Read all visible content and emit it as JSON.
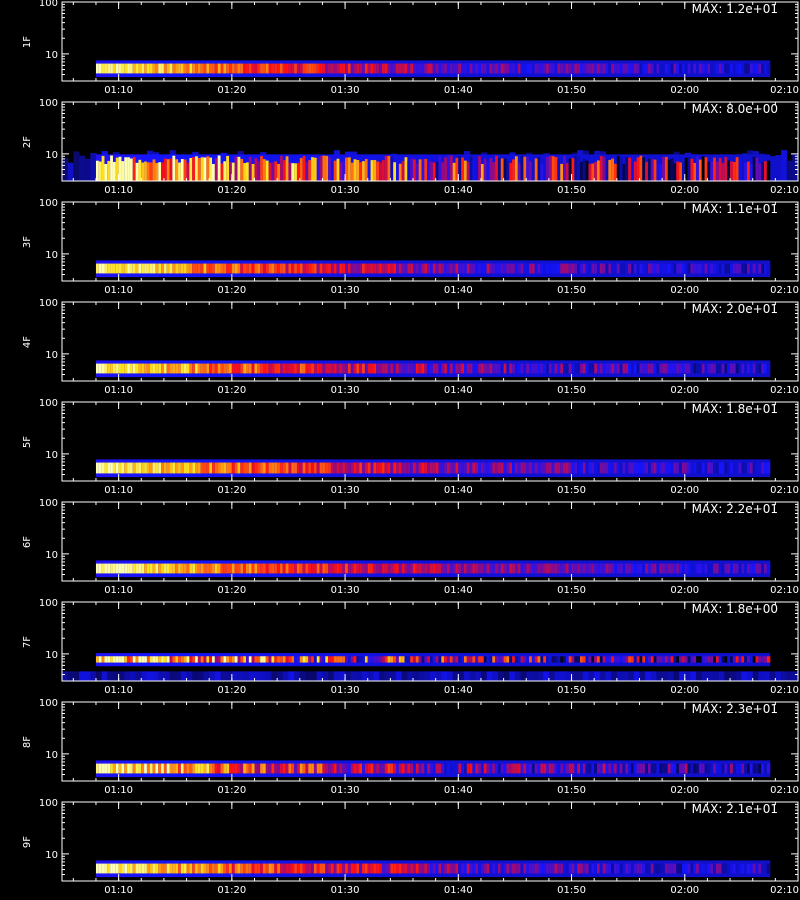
{
  "colors": {
    "background": "#000000",
    "axis": "#ffffff",
    "colormap": [
      "#000000",
      "#0a0a80",
      "#1414ff",
      "#8a0a8a",
      "#ff1010",
      "#ff7a10",
      "#ffe21a",
      "#ffffb0"
    ]
  },
  "chart_data": {
    "type": "heatmap",
    "layout": "9 vertically stacked spectrogram panels sharing a time axis",
    "x_axis": {
      "tick_labels": [
        "01:10",
        "01:20",
        "01:30",
        "01:40",
        "01:50",
        "02:00",
        "02:10"
      ],
      "tick_values_min": [
        70,
        80,
        90,
        100,
        110,
        120,
        130
      ],
      "minor_tick_step_min": 2,
      "range_min": [
        65,
        130
      ],
      "data_range_min": [
        68,
        127.5
      ],
      "title": ""
    },
    "y_axis": {
      "scale": "log",
      "tick_labels": [
        "10",
        "100"
      ],
      "tick_values": [
        10,
        100
      ],
      "range": [
        3,
        100
      ]
    },
    "panels": [
      {
        "label": "1F",
        "max_text": "MAX: 1.2e+01",
        "band": [
          4.2,
          6.5
        ],
        "decay_min": 22,
        "noise": 0.12,
        "spread": 0
      },
      {
        "label": "2F",
        "max_text": "MAX: 8.0e+00",
        "band": [
          3.0,
          8.5
        ],
        "decay_min": 28,
        "noise": 0.35,
        "spread": 1
      },
      {
        "label": "3F",
        "max_text": "MAX: 1.1e+01",
        "band": [
          4.2,
          6.5
        ],
        "decay_min": 22,
        "noise": 0.12,
        "spread": 0
      },
      {
        "label": "4F",
        "max_text": "MAX: 2.0e+01",
        "band": [
          4.2,
          6.5
        ],
        "decay_min": 22,
        "noise": 0.15,
        "spread": 0
      },
      {
        "label": "5F",
        "max_text": "MAX: 1.8e+01",
        "band": [
          4.2,
          6.8
        ],
        "decay_min": 24,
        "noise": 0.12,
        "spread": 0
      },
      {
        "label": "6F",
        "max_text": "MAX: 2.2e+01",
        "band": [
          4.2,
          6.5
        ],
        "decay_min": 26,
        "noise": 0.1,
        "spread": 0
      },
      {
        "label": "7F",
        "max_text": "MAX: 1.8e+00",
        "band": [
          6.8,
          9.0
        ],
        "decay_min": 24,
        "noise": 0.35,
        "spread": 2
      },
      {
        "label": "8F",
        "max_text": "MAX: 2.3e+01",
        "band": [
          4.2,
          6.5
        ],
        "decay_min": 22,
        "noise": 0.2,
        "spread": 0
      },
      {
        "label": "9F",
        "max_text": "MAX: 2.1e+01",
        "band": [
          4.2,
          6.5
        ],
        "decay_min": 22,
        "noise": 0.15,
        "spread": 0
      }
    ]
  }
}
